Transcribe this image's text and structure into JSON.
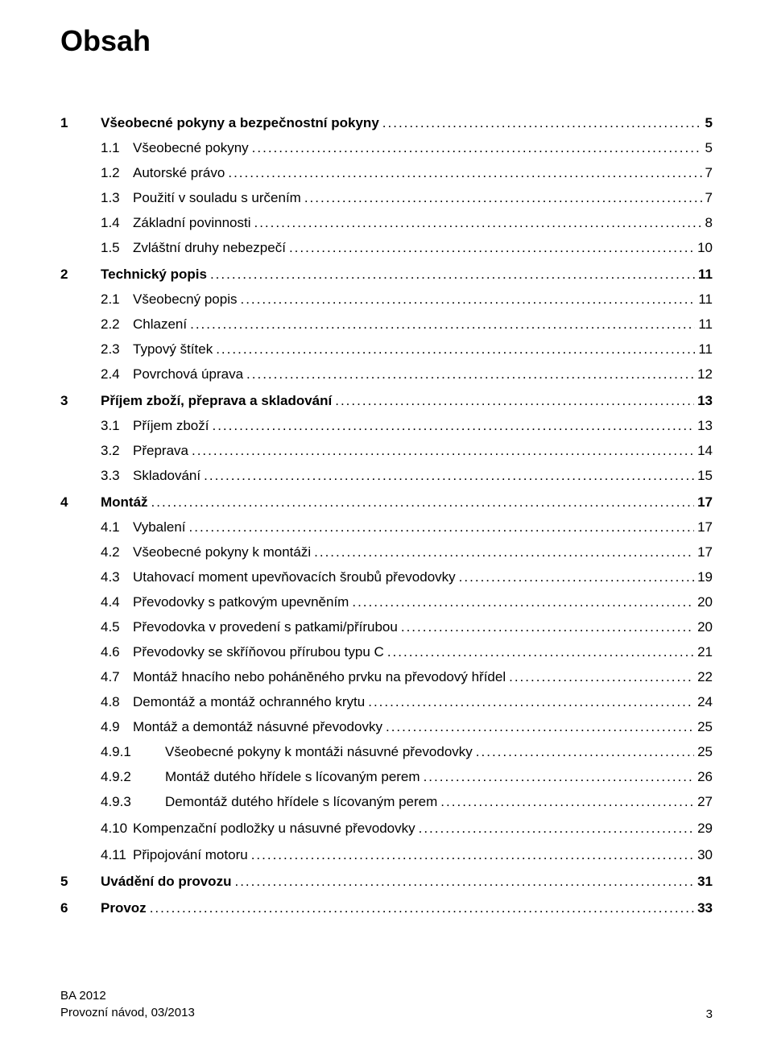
{
  "title": "Obsah",
  "toc": [
    {
      "kind": "section",
      "num": "1",
      "title": "Všeobecné pokyny a bezpečnostní pokyny",
      "page": "5"
    },
    {
      "kind": "sub",
      "num": "1.1",
      "title": "Všeobecné pokyny",
      "page": "5"
    },
    {
      "kind": "sub",
      "num": "1.2",
      "title": "Autorské právo",
      "page": "7"
    },
    {
      "kind": "sub",
      "num": "1.3",
      "title": "Použití v souladu s určením",
      "page": "7"
    },
    {
      "kind": "sub",
      "num": "1.4",
      "title": "Základní povinnosti",
      "page": "8"
    },
    {
      "kind": "sub",
      "num": "1.5",
      "title": "Zvláštní druhy nebezpečí",
      "page": "10"
    },
    {
      "kind": "section",
      "num": "2",
      "title": "Technický popis",
      "page": "11",
      "gap": true
    },
    {
      "kind": "sub",
      "num": "2.1",
      "title": "Všeobecný popis",
      "page": "11"
    },
    {
      "kind": "sub",
      "num": "2.2",
      "title": "Chlazení",
      "page": "11"
    },
    {
      "kind": "sub",
      "num": "2.3",
      "title": "Typový štítek",
      "page": "11"
    },
    {
      "kind": "sub",
      "num": "2.4",
      "title": "Povrchová úprava",
      "page": "12"
    },
    {
      "kind": "section",
      "num": "3",
      "title": "Příjem zboží, přeprava a skladování",
      "page": "13",
      "gap": true
    },
    {
      "kind": "sub",
      "num": "3.1",
      "title": "Příjem zboží",
      "page": "13"
    },
    {
      "kind": "sub",
      "num": "3.2",
      "title": "Přeprava",
      "page": "14"
    },
    {
      "kind": "sub",
      "num": "3.3",
      "title": "Skladování",
      "page": "15"
    },
    {
      "kind": "section",
      "num": "4",
      "title": "Montáž",
      "page": "17",
      "gap": true
    },
    {
      "kind": "sub",
      "num": "4.1",
      "title": "Vybalení",
      "page": "17"
    },
    {
      "kind": "sub",
      "num": "4.2",
      "title": "Všeobecné pokyny k montáži",
      "page": "17"
    },
    {
      "kind": "sub",
      "num": "4.3",
      "title": "Utahovací moment upevňovacích šroubů převodovky",
      "page": "19"
    },
    {
      "kind": "sub",
      "num": "4.4",
      "title": "Převodovky s patkovým upevněním",
      "page": "20"
    },
    {
      "kind": "sub",
      "num": "4.5",
      "title": "Převodovka v provedení s patkami/přírubou",
      "page": "20"
    },
    {
      "kind": "sub",
      "num": "4.6",
      "title": "Převodovky se skříňovou přírubou typu C",
      "page": "21"
    },
    {
      "kind": "sub",
      "num": "4.7",
      "title": "Montáž hnacího nebo poháněného prvku na převodový hřídel",
      "page": "22"
    },
    {
      "kind": "sub",
      "num": "4.8",
      "title": "Demontáž a montáž ochranného krytu",
      "page": "24"
    },
    {
      "kind": "sub",
      "num": "4.9",
      "title": "Montáž a demontáž násuvné převodovky",
      "page": "25"
    },
    {
      "kind": "subsub",
      "num": "4.9.1",
      "title": "Všeobecné pokyny k montáži násuvné převodovky",
      "page": "25"
    },
    {
      "kind": "subsub",
      "num": "4.9.2",
      "title": "Montáž dutého hřídele s lícovaným perem",
      "page": "26"
    },
    {
      "kind": "subsub",
      "num": "4.9.3",
      "title": "Demontáž dutého hřídele s lícovaným perem",
      "page": "27"
    },
    {
      "kind": "sub",
      "num": "4.10",
      "title": "Kompenzační podložky u násuvné převodovky",
      "page": "29",
      "gap": true
    },
    {
      "kind": "sub",
      "num": "4.11",
      "title": "Připojování motoru",
      "page": "30",
      "gap": true
    },
    {
      "kind": "section",
      "num": "5",
      "title": "Uvádění do provozu",
      "page": "31",
      "gap": true
    },
    {
      "kind": "section",
      "num": "6",
      "title": "Provoz",
      "page": "33",
      "gap": true
    }
  ],
  "footer": {
    "line1": "BA 2012",
    "line2": "Provozní návod, 03/2013",
    "page_number": "3"
  }
}
